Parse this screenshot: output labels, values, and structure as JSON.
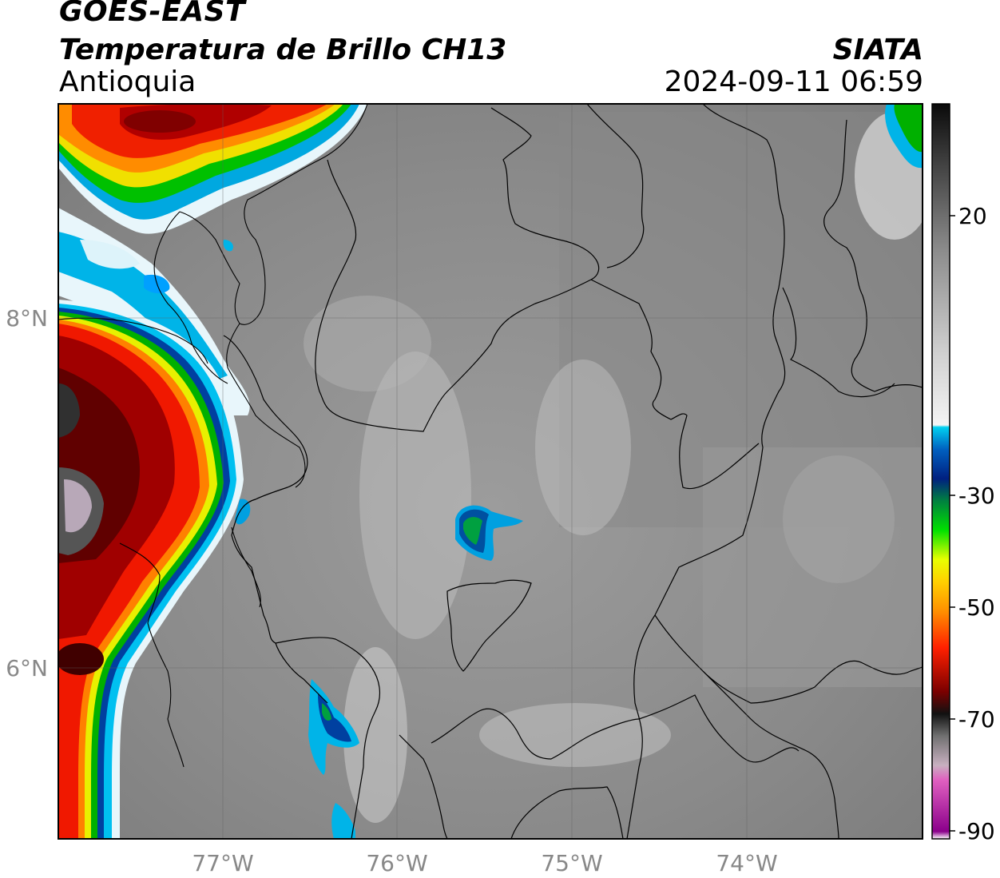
{
  "header": {
    "satellite": "GOES-EAST",
    "product": "Temperatura de Brillo CH13",
    "region": "Antioquia",
    "brand": "SIATA",
    "timestamp": "2024-09-11 06:59"
  },
  "map": {
    "lon_ticks": [
      "77°W",
      "76°W",
      "75°W",
      "74°W"
    ],
    "lat_ticks": [
      "8°N",
      "6°N"
    ]
  },
  "colorbar": {
    "ticks": [
      "20",
      "-30",
      "-50",
      "-70",
      "-90"
    ]
  }
}
